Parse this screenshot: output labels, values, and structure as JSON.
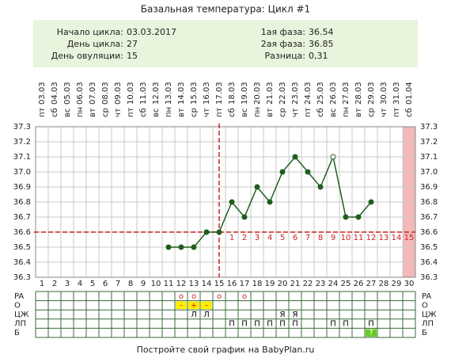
{
  "header": {
    "title": "Базальная температура: Цикл #1"
  },
  "info": {
    "left": [
      {
        "label": "Начало цикла:",
        "value": "03.03.2017"
      },
      {
        "label": "День цикла:",
        "value": "27"
      },
      {
        "label": "День овуляции:",
        "value": "15"
      }
    ],
    "right": [
      {
        "label": "1ая фаза:",
        "value": "36.54"
      },
      {
        "label": "2ая фаза:",
        "value": "36.85"
      },
      {
        "label": "Разница:",
        "value": "0,31"
      }
    ]
  },
  "chart_data": {
    "type": "line",
    "categories": [
      1,
      2,
      3,
      4,
      5,
      6,
      7,
      8,
      9,
      10,
      11,
      12,
      13,
      14,
      15,
      16,
      17,
      18,
      19,
      20,
      21,
      22,
      23,
      24,
      25,
      26,
      27,
      28,
      29,
      30
    ],
    "dates": [
      "03.03",
      "04.03",
      "05.03",
      "06.03",
      "07.03",
      "08.03",
      "09.03",
      "10.03",
      "11.03",
      "12.03",
      "13.03",
      "14.03",
      "15.03",
      "16.03",
      "17.03",
      "18.03",
      "19.03",
      "20.03",
      "21.03",
      "22.03",
      "23.03",
      "24.03",
      "25.03",
      "26.03",
      "27.03",
      "28.03",
      "29.03",
      "30.03",
      "31.03",
      "01.04"
    ],
    "weekdays": [
      "пт",
      "сб",
      "вс",
      "пн",
      "вт",
      "ср",
      "чт",
      "пт",
      "сб",
      "вс",
      "пн",
      "вт",
      "ср",
      "чт",
      "пт",
      "сб",
      "вс",
      "пн",
      "вт",
      "ср",
      "чт",
      "пт",
      "сб",
      "вс",
      "пн",
      "вт",
      "ср",
      "чт",
      "пт",
      "сб"
    ],
    "series": [
      {
        "name": "Температура",
        "color": "#1f5e1f",
        "values": [
          null,
          null,
          null,
          null,
          null,
          null,
          null,
          null,
          null,
          null,
          36.5,
          36.5,
          36.5,
          36.6,
          36.6,
          36.8,
          36.7,
          36.9,
          36.8,
          37.0,
          37.1,
          37.0,
          36.9,
          37.1,
          36.7,
          36.7,
          36.8,
          null,
          null,
          null
        ],
        "hollow_points": [
          23
        ]
      }
    ],
    "phase_labels": [
      null,
      null,
      null,
      null,
      null,
      null,
      null,
      null,
      null,
      null,
      null,
      null,
      null,
      null,
      null,
      1,
      2,
      3,
      4,
      5,
      6,
      7,
      8,
      9,
      10,
      11,
      12,
      13,
      14,
      15
    ],
    "coverline": 36.6,
    "ovulation_day": 15,
    "highlight_day": 30,
    "highlight_color": "#f4b8b8",
    "line_color": "#cc2222",
    "ylim": [
      36.3,
      37.3
    ],
    "yticks": [
      36.3,
      36.4,
      36.5,
      36.6,
      36.7,
      36.8,
      36.9,
      {
        "value": 37,
        "label": "37.0"
      },
      37.1,
      37.2,
      37.3
    ],
    "grid": true
  },
  "table": {
    "rows": [
      {
        "label": "PA",
        "text_color": "#cc2222",
        "fill": null,
        "cells": [
          null,
          null,
          null,
          null,
          null,
          null,
          null,
          null,
          null,
          null,
          null,
          "o",
          "o",
          null,
          "o",
          null,
          "o",
          null,
          null,
          null,
          null,
          null,
          null,
          null,
          null,
          null,
          null,
          null,
          null,
          null
        ]
      },
      {
        "label": "O",
        "text_color": "#cc2222",
        "fill": "#ffee00",
        "cells": [
          null,
          null,
          null,
          null,
          null,
          null,
          null,
          null,
          null,
          null,
          null,
          "-",
          "+",
          "-",
          null,
          null,
          null,
          null,
          null,
          null,
          null,
          null,
          null,
          null,
          null,
          null,
          null,
          null,
          null,
          null
        ]
      },
      {
        "label": "ЦЖ",
        "text_color": "#000000",
        "fill": null,
        "cells": [
          null,
          null,
          null,
          null,
          null,
          null,
          null,
          null,
          null,
          null,
          null,
          null,
          "Л",
          "Л",
          null,
          null,
          null,
          null,
          null,
          "Я",
          "Я",
          null,
          null,
          null,
          null,
          null,
          null,
          null,
          null,
          null
        ]
      },
      {
        "label": "ЛП",
        "text_color": "#000000",
        "fill": null,
        "cells": [
          null,
          null,
          null,
          null,
          null,
          null,
          null,
          null,
          null,
          null,
          null,
          null,
          null,
          null,
          null,
          "П",
          "П",
          "П",
          "П",
          "П",
          "П",
          null,
          null,
          "П",
          "П",
          null,
          "П",
          null,
          null,
          null
        ]
      },
      {
        "label": "Б",
        "text_color": "#ffffff",
        "fill": "#66cc22",
        "cells": [
          null,
          null,
          null,
          null,
          null,
          null,
          null,
          null,
          null,
          null,
          null,
          null,
          null,
          null,
          null,
          null,
          null,
          null,
          null,
          null,
          null,
          null,
          null,
          null,
          null,
          null,
          "?",
          null,
          null,
          null
        ]
      }
    ]
  },
  "footer": {
    "text": "Постройте свой график на BabyPlan.ru"
  }
}
